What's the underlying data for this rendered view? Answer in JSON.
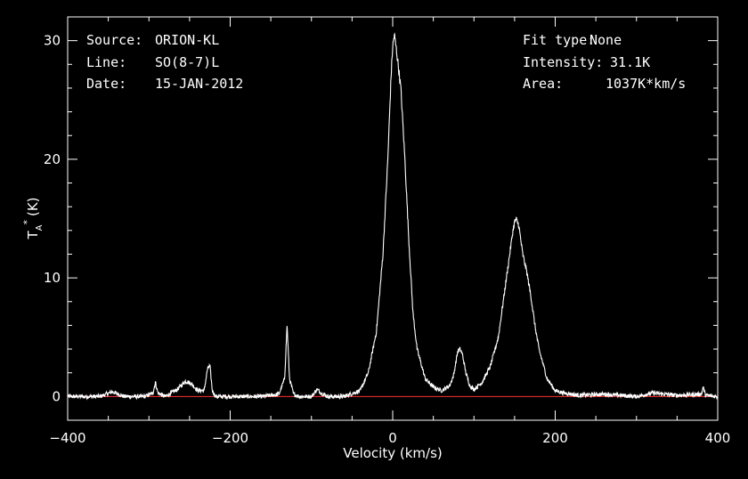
{
  "info_left": [
    {
      "key": "Source:",
      "value": "ORION-KL"
    },
    {
      "key": "Line:",
      "value": "SO(8-7)L"
    },
    {
      "key": "Date:",
      "value": "15-JAN-2012"
    }
  ],
  "info_right": [
    {
      "key": "Fit type:",
      "value": "None"
    },
    {
      "key": "Intensity:",
      "value": "31.1K"
    },
    {
      "key": "Area:",
      "value": "1037K*km/s"
    }
  ],
  "colors": {
    "background": "#000000",
    "frame": "#ffffff",
    "spectrum": "#ffffff",
    "baseline": "#ff3030"
  },
  "chart_data": {
    "type": "line",
    "xlabel": "Velocity (km/s)",
    "ylabel_main": "T",
    "ylabel_sub": "A",
    "ylabel_sup": "*",
    "ylabel_unit": "(K)",
    "xlim": [
      -400,
      400
    ],
    "ylim": [
      -2,
      32
    ],
    "x_ticks": [
      -400,
      -200,
      0,
      200,
      400
    ],
    "x_tick_labels": [
      "−400",
      "−200",
      "0",
      "200",
      "400"
    ],
    "y_ticks": [
      0,
      10,
      20,
      30
    ],
    "y_tick_labels": [
      "0",
      "10",
      "20",
      "30"
    ],
    "grid": false,
    "baseline": 0,
    "series": [
      {
        "x": [
          -400,
          -360,
          -345,
          -330,
          -305,
          -295,
          -292,
          -289,
          -280,
          -265,
          -255,
          -248,
          -240,
          -232,
          -228,
          -225,
          -222,
          -218,
          -200,
          -160,
          -140,
          -133,
          -130,
          -127,
          -122,
          -115,
          -100,
          -93,
          -88,
          -80,
          -60,
          -40,
          -30,
          -20,
          -12,
          -6,
          -2,
          0,
          2,
          5,
          10,
          15,
          20,
          25,
          30,
          40,
          50,
          60,
          70,
          75,
          80,
          83,
          86,
          90,
          95,
          100,
          110,
          120,
          130,
          140,
          145,
          148,
          150,
          152,
          155,
          160,
          165,
          170,
          175,
          180,
          190,
          200,
          210,
          230,
          260,
          300,
          320,
          350,
          380,
          382,
          385,
          400
        ],
        "y": [
          0,
          0,
          0.4,
          0,
          0,
          0.3,
          1.2,
          0.3,
          0,
          0.6,
          1.3,
          1.1,
          0.5,
          0.5,
          2.3,
          2.6,
          0.5,
          0,
          0,
          0,
          0.2,
          1.5,
          6.0,
          1.5,
          0.2,
          0,
          0,
          0.6,
          0.3,
          0,
          0,
          0.5,
          2,
          5.5,
          12,
          20,
          27,
          29.5,
          30.5,
          29,
          26,
          20,
          13,
          7,
          4,
          1.5,
          0.8,
          0.5,
          0.9,
          1.8,
          3.8,
          4.0,
          3.5,
          2,
          0.9,
          0.6,
          1.2,
          2.5,
          5.0,
          10.0,
          12.5,
          14.0,
          14.7,
          14.9,
          14.5,
          12.0,
          10.5,
          8.5,
          6.0,
          4.0,
          1.5,
          0.5,
          0.3,
          0.1,
          0.2,
          0,
          0.3,
          0.1,
          0.2,
          0.8,
          0.1,
          0
        ]
      }
    ]
  }
}
